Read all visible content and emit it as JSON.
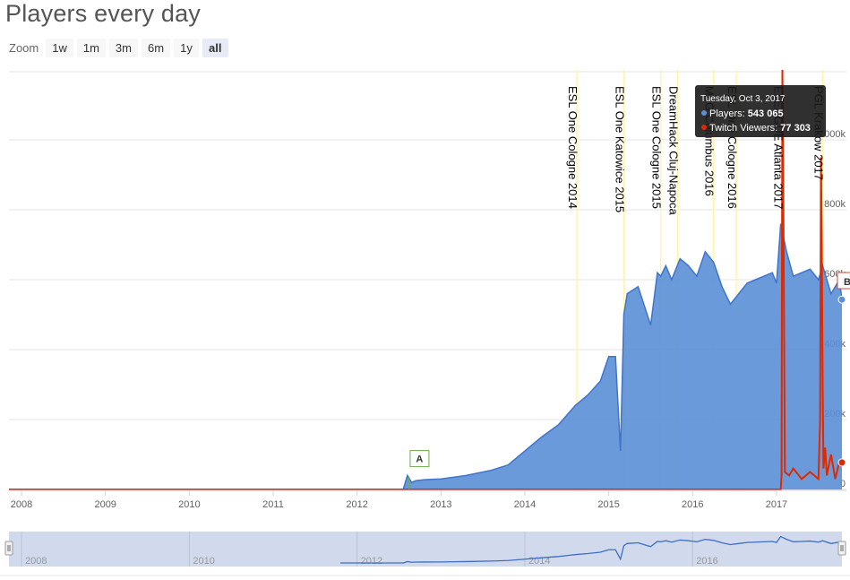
{
  "page": {
    "title": "Players every day"
  },
  "zoom": {
    "label": "Zoom",
    "buttons": [
      "1w",
      "1m",
      "3m",
      "6m",
      "1y",
      "all"
    ],
    "active": "all"
  },
  "colors": {
    "players": "#5b8fd6",
    "players_line": "#3f74cc",
    "twitch": "#dd2a00",
    "event_line": "#fff4a8",
    "grid": "#e6e6e6",
    "navigator_bg": "#ccd6eb"
  },
  "tooltip": {
    "date": "Tuesday, Oct 3, 2017",
    "rows": [
      {
        "series": "Players",
        "value": "543 065"
      },
      {
        "series": "Twitch Viewers",
        "value": "77 303"
      }
    ]
  },
  "flags": [
    "A",
    "B"
  ],
  "chart_data": {
    "type": "area",
    "xlim": [
      2007.85,
      2017.78
    ],
    "ylim": [
      0,
      1200000
    ],
    "x_ticks": [
      "2008",
      "2009",
      "2010",
      "2011",
      "2012",
      "2013",
      "2014",
      "2015",
      "2016",
      "2017"
    ],
    "y_ticks": [
      "0",
      "200k",
      "400k",
      "600k",
      "800k",
      "1000k"
    ],
    "grid": true,
    "events": [
      {
        "label": "ESL One Cologne 2014",
        "x": 2014.62
      },
      {
        "label": "ESL One Katowice 2015",
        "x": 2015.18
      },
      {
        "label": "ESL One Cologne 2015",
        "x": 2015.62
      },
      {
        "label": "DreamHack Cluj-Napoca",
        "x": 2015.82
      },
      {
        "label": "MLG Columbus 2016",
        "x": 2016.25
      },
      {
        "label": "ESL One Cologne 2016",
        "x": 2016.52
      },
      {
        "label": "ELEAGUE Atlanta 2017",
        "x": 2017.07
      },
      {
        "label": "PGL Krakow 2017",
        "x": 2017.55
      }
    ],
    "series": [
      {
        "name": "Players",
        "x": [
          2007.85,
          2012.55,
          2012.6,
          2012.65,
          2012.7,
          2012.8,
          2013.0,
          2013.3,
          2013.6,
          2013.8,
          2014.0,
          2014.2,
          2014.4,
          2014.6,
          2014.75,
          2014.9,
          2015.0,
          2015.08,
          2015.14,
          2015.18,
          2015.22,
          2015.35,
          2015.5,
          2015.58,
          2015.62,
          2015.68,
          2015.75,
          2015.85,
          2015.95,
          2016.05,
          2016.15,
          2016.25,
          2016.35,
          2016.45,
          2016.55,
          2016.65,
          2016.75,
          2016.85,
          2016.95,
          2017.0,
          2017.05,
          2017.12,
          2017.2,
          2017.3,
          2017.4,
          2017.5,
          2017.55,
          2017.65,
          2017.75,
          2017.78
        ],
        "y": [
          0,
          0,
          40000,
          20000,
          25000,
          28000,
          30000,
          40000,
          55000,
          70000,
          110000,
          150000,
          185000,
          240000,
          270000,
          310000,
          380000,
          380000,
          110000,
          500000,
          560000,
          580000,
          470000,
          620000,
          610000,
          640000,
          600000,
          660000,
          640000,
          610000,
          680000,
          650000,
          580000,
          530000,
          560000,
          590000,
          600000,
          610000,
          620000,
          590000,
          760000,
          680000,
          610000,
          620000,
          630000,
          600000,
          640000,
          560000,
          600000,
          543065
        ]
      },
      {
        "name": "Twitch Viewers",
        "x": [
          2007.85,
          2017.05,
          2017.06,
          2017.07,
          2017.08,
          2017.1,
          2017.15,
          2017.2,
          2017.3,
          2017.4,
          2017.45,
          2017.5,
          2017.52,
          2017.53,
          2017.54,
          2017.55,
          2017.56,
          2017.58,
          2017.6,
          2017.65,
          2017.7,
          2017.75,
          2017.78
        ],
        "y": [
          0,
          0,
          40000,
          1200000,
          900000,
          50000,
          40000,
          60000,
          30000,
          50000,
          40000,
          30000,
          200000,
          950000,
          700000,
          300000,
          60000,
          120000,
          40000,
          100000,
          30000,
          80000,
          77303
        ]
      }
    ],
    "navigator_ticks": [
      "2008",
      "2010",
      "2012",
      "2014",
      "2016"
    ]
  }
}
